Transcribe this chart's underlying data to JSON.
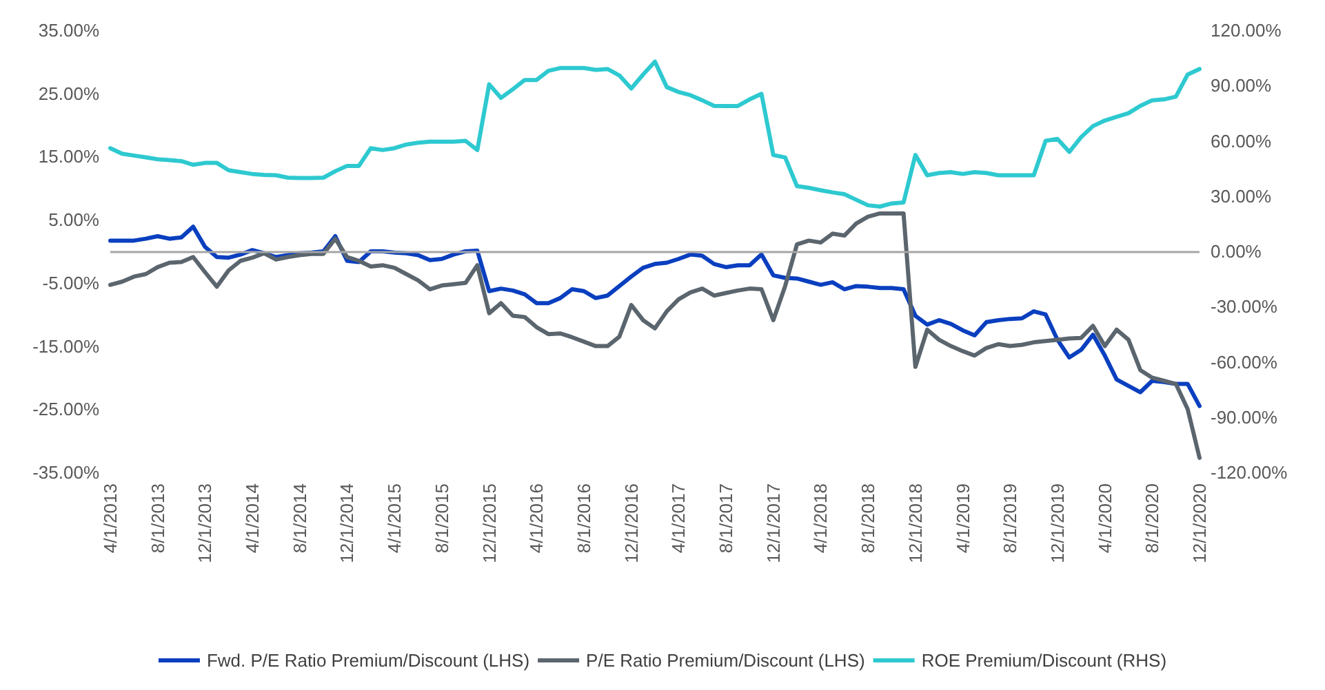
{
  "chart_data": {
    "type": "line",
    "categories": [
      "4/1/2013",
      null,
      null,
      null,
      "8/1/2013",
      null,
      null,
      null,
      "12/1/2013",
      null,
      null,
      null,
      "4/1/2014",
      null,
      null,
      null,
      "8/1/2014",
      null,
      null,
      null,
      "12/1/2014",
      null,
      null,
      null,
      "4/1/2015",
      null,
      null,
      null,
      "8/1/2015",
      null,
      null,
      null,
      "12/1/2015",
      null,
      null,
      null,
      "4/1/2016",
      null,
      null,
      null,
      "8/1/2016",
      null,
      null,
      null,
      "12/1/2016",
      null,
      null,
      null,
      "4/1/2017",
      null,
      null,
      null,
      "8/1/2017",
      null,
      null,
      null,
      "12/1/2017",
      null,
      null,
      null,
      "4/1/2018",
      null,
      null,
      null,
      "8/1/2018",
      null,
      null,
      null,
      "12/1/2018",
      null,
      null,
      null,
      "4/1/2019",
      null,
      null,
      null,
      "8/1/2019",
      null,
      null,
      null,
      "12/1/2019",
      null,
      null,
      null,
      "4/1/2020",
      null,
      null,
      null,
      "8/1/2020",
      null,
      null,
      null,
      "12/1/2020"
    ],
    "series": [
      {
        "name": "Fwd. P/E Ratio Premium/Discount (LHS)",
        "color": "#0a3fbf",
        "values": [
          1.7,
          1.7,
          1.7,
          2.0,
          2.4,
          2.0,
          2.2,
          3.9,
          0.7,
          -0.9,
          -1.0,
          -0.5,
          0.2,
          -0.3,
          -0.9,
          -0.6,
          -0.3,
          -0.2,
          0.0,
          2.4,
          -1.5,
          -1.7,
          0.0,
          0.0,
          -0.2,
          -0.3,
          -0.6,
          -1.4,
          -1.2,
          -0.5,
          0.0,
          0.1,
          -6.3,
          -5.9,
          -6.2,
          -6.8,
          -8.2,
          -8.2,
          -7.4,
          -6.0,
          -6.3,
          -7.4,
          -7.0,
          -5.5,
          -4.0,
          -2.6,
          -2.0,
          -1.8,
          -1.2,
          -0.5,
          -0.7,
          -2.0,
          -2.5,
          -2.2,
          -2.2,
          -0.5,
          -3.8,
          -4.2,
          -4.3,
          -4.8,
          -5.3,
          -4.9,
          -6.0,
          -5.5,
          -5.6,
          -5.8,
          -5.8,
          -6.0,
          -10.2,
          -11.6,
          -10.9,
          -11.5,
          -12.5,
          -13.3,
          -11.2,
          -10.9,
          -10.7,
          -10.6,
          -9.5,
          -10.0,
          -14.0,
          -16.8,
          -15.6,
          -13.2,
          -16.5,
          -20.3,
          -21.3,
          -22.3,
          -20.5,
          -20.7,
          -21.0,
          -21.0,
          -24.5
        ]
      },
      {
        "name": "P/E Ratio Premium/Discount (LHS)",
        "color": "#5b656e",
        "values": [
          -5.3,
          -4.8,
          -4.0,
          -3.6,
          -2.5,
          -1.8,
          -1.7,
          -0.9,
          -3.3,
          -5.6,
          -3.0,
          -1.5,
          -1.0,
          -0.3,
          -1.3,
          -0.9,
          -0.6,
          -0.4,
          -0.4,
          2.0,
          -0.9,
          -1.5,
          -2.4,
          -2.2,
          -2.6,
          -3.6,
          -4.6,
          -6.0,
          -5.4,
          -5.2,
          -5.0,
          -2.2,
          -9.8,
          -8.2,
          -10.2,
          -10.4,
          -12.0,
          -13.1,
          -13.0,
          -13.6,
          -14.3,
          -15.0,
          -15.0,
          -13.5,
          -8.5,
          -10.9,
          -12.2,
          -9.5,
          -7.6,
          -6.5,
          -5.9,
          -7.0,
          -6.6,
          -6.2,
          -5.9,
          -6.0,
          -10.9,
          -5.5,
          1.1,
          1.7,
          1.4,
          2.8,
          2.5,
          4.4,
          5.5,
          6.0,
          6.0,
          6.0,
          -18.3,
          -12.4,
          -14.0,
          -15.0,
          -15.8,
          -16.5,
          -15.3,
          -14.7,
          -15.0,
          -14.8,
          -14.4,
          -14.2,
          -14.0,
          -13.8,
          -13.7,
          -11.8,
          -15.0,
          -12.4,
          -14.0,
          -18.8,
          -20.0,
          -20.5,
          -21.0,
          -25.0,
          -32.7
        ]
      },
      {
        "name": "ROE Premium/Discount (RHS)",
        "color": "#2ec9d0",
        "axis": "y2",
        "values": [
          56,
          53,
          52,
          51,
          50,
          49.5,
          49,
          47,
          48,
          48,
          44,
          43,
          42,
          41.5,
          41.3,
          40,
          39.8,
          39.8,
          40,
          43.5,
          46.4,
          46.4,
          56,
          55,
          56,
          58,
          59,
          59.5,
          59.5,
          59.5,
          60,
          55,
          90.7,
          83.3,
          88,
          93,
          93,
          98,
          99.5,
          99.5,
          99.5,
          98.5,
          99,
          95.5,
          88.4,
          96,
          103,
          89.2,
          86.5,
          84.8,
          82,
          79,
          78.9,
          78.9,
          82.5,
          85.5,
          52.3,
          51,
          35.4,
          34.5,
          33.2,
          32,
          31,
          28,
          25,
          24.3,
          26,
          26.5,
          52.3,
          41.3,
          42.5,
          43,
          42,
          43,
          42.5,
          41.3,
          41.3,
          41.3,
          41.3,
          60,
          61,
          54,
          62,
          68,
          71,
          73,
          75,
          79,
          82,
          82.5,
          84,
          96,
          99
        ]
      }
    ],
    "ylim": [
      -35,
      35
    ],
    "yticks": [
      {
        "value": -35,
        "label": "-35.00%"
      },
      {
        "value": -25,
        "label": "-25.00%"
      },
      {
        "value": -15,
        "label": "-15.00%"
      },
      {
        "value": -5,
        "label": "-5.00%"
      },
      {
        "value": 5,
        "label": "5.00%"
      },
      {
        "value": 15,
        "label": "15.00%"
      },
      {
        "value": 25,
        "label": "25.00%"
      },
      {
        "value": 35,
        "label": "35.00%"
      }
    ],
    "y2lim": [
      -120,
      120
    ],
    "y2ticks": [
      {
        "value": -120,
        "label": "-120.00%"
      },
      {
        "value": -90,
        "label": "-90.00%"
      },
      {
        "value": -60,
        "label": "-60.00%"
      },
      {
        "value": -30,
        "label": "-30.00%"
      },
      {
        "value": 0,
        "label": "0.00%"
      },
      {
        "value": 30,
        "label": "30.00%"
      },
      {
        "value": 60,
        "label": "60.00%"
      },
      {
        "value": 90,
        "label": "90.00%"
      },
      {
        "value": 120,
        "label": "120.00%"
      }
    ],
    "ref_lines": [
      {
        "axis": "y",
        "value": 0,
        "color": "#a6a6a6"
      }
    ],
    "grid": false,
    "legend": "bottom",
    "marker": "none",
    "line_style": "solid"
  }
}
